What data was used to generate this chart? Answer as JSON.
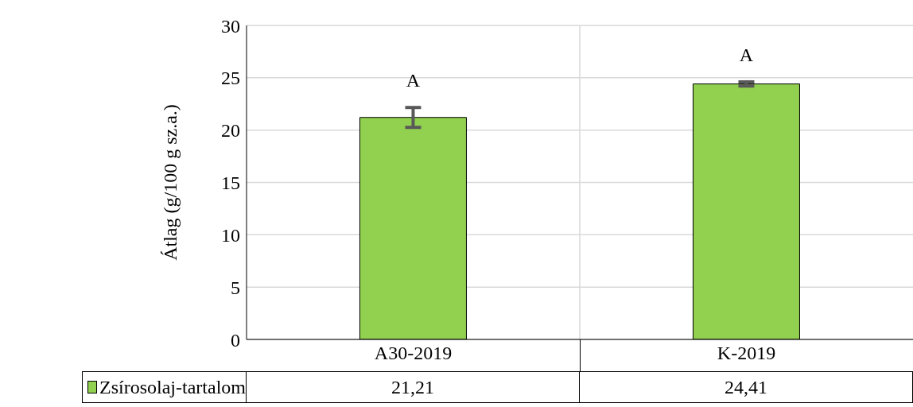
{
  "chart_data": {
    "type": "bar",
    "ylabel": "Átlag (g/100 g sz.a.)",
    "categories": [
      "A30-2019",
      "K-2019"
    ],
    "series": [
      {
        "name": "Zsírosolaj-tartalom",
        "color": "#92d050",
        "values": [
          21.21,
          24.41
        ],
        "errors": [
          0.95,
          0.2
        ],
        "value_labels": [
          "21,21",
          "24,41"
        ]
      }
    ],
    "ylim": [
      0,
      30
    ],
    "yticks": [
      0,
      5,
      10,
      15,
      20,
      25,
      30
    ],
    "grid": "y",
    "legend": "bottom left",
    "annotations": [
      "A",
      "A"
    ]
  }
}
